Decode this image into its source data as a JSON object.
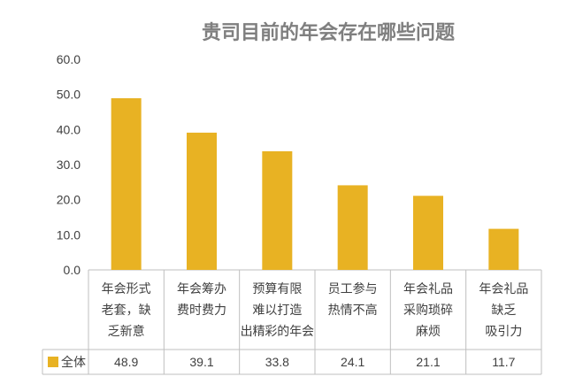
{
  "chart_data": {
    "type": "bar",
    "title": "贵司目前的年会存在哪些问题",
    "categories": [
      [
        "年会形式",
        "老套，缺",
        "乏新意"
      ],
      [
        "年会筹办",
        "费时费力"
      ],
      [
        "预算有限",
        "难以打造",
        "出精彩的年会"
      ],
      [
        "员工参与",
        "热情不高"
      ],
      [
        "年会礼品",
        "采购琐碎",
        "麻烦"
      ],
      [
        "年会礼品",
        "缺乏",
        "吸引力"
      ]
    ],
    "series": [
      {
        "name": "全体",
        "values": [
          48.9,
          39.1,
          33.8,
          24.1,
          21.1,
          11.7
        ],
        "color": "#E8B223"
      }
    ],
    "value_labels": [
      "48.9",
      "39.1",
      "33.8",
      "24.1",
      "21.1",
      "11.7"
    ],
    "y_ticks": [
      "0.0",
      "10.0",
      "20.0",
      "30.0",
      "40.0",
      "50.0",
      "60.0"
    ],
    "ylim": [
      0,
      60
    ],
    "grid": false,
    "data_table": true,
    "legend_in_table": true
  }
}
